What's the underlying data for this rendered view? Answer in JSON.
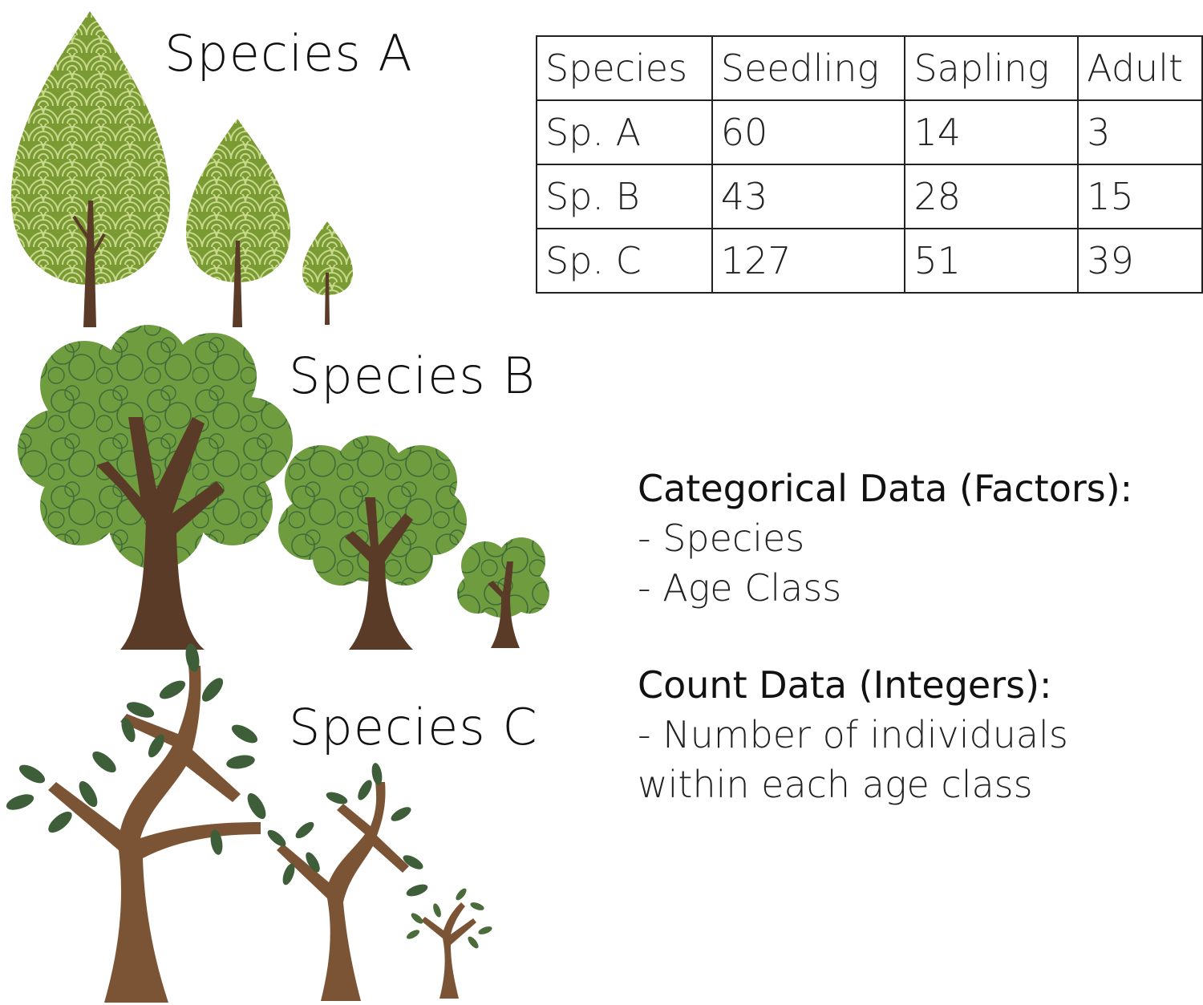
{
  "species_labels": [
    "Species A",
    "Species B",
    "Species C"
  ],
  "table": {
    "headers": [
      "Species",
      "Seedling",
      "Sapling",
      "Adult"
    ],
    "rows": [
      [
        "Sp. A",
        "60",
        "14",
        "3"
      ],
      [
        "Sp. B",
        "43",
        "28",
        "15"
      ],
      [
        "Sp. C",
        "127",
        "51",
        "39"
      ]
    ]
  },
  "categorical": {
    "heading": "Categorical Data (Factors):",
    "items": [
      "- Species",
      "- Age Class"
    ]
  },
  "count": {
    "heading": "Count Data (Integers):",
    "lines": [
      "- Number of individuals",
      "within each age class"
    ]
  },
  "colors": {
    "leaf_olive": "#7a9a34",
    "leaf_green": "#6e9c3f",
    "leaf_dark": "#3d5e38",
    "trunk_dark": "#5a3b28",
    "trunk_light": "#7b5435",
    "pattern_light": "#c7d88a"
  },
  "icons": [
    "teardrop-tree-icon",
    "round-tree-icon",
    "branchy-tree-icon"
  ]
}
